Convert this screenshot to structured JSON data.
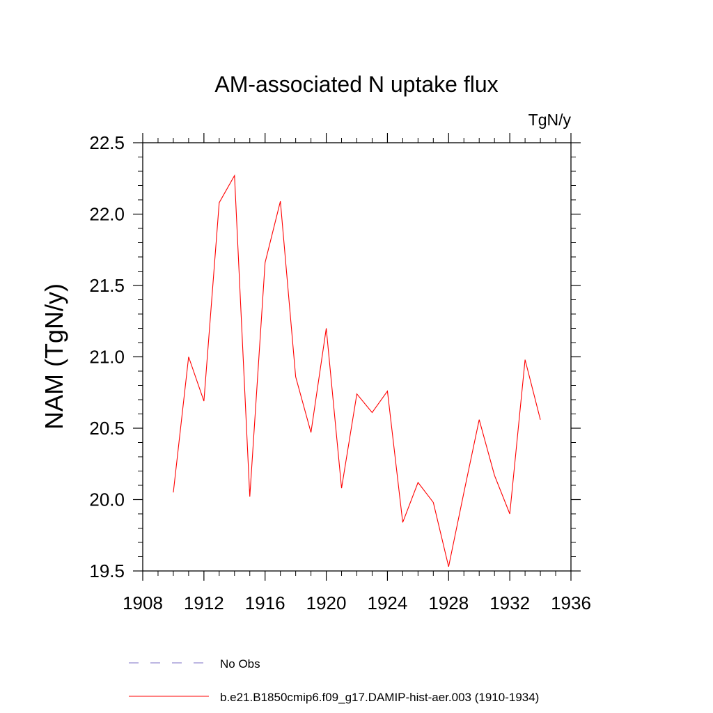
{
  "chart_data": {
    "type": "line",
    "title": "AM-associated N uptake flux",
    "units": "TgN/y",
    "ylabel": "NAM  (TgN/y)",
    "xlabel": "",
    "xlim": [
      1908,
      1936
    ],
    "ylim": [
      19.5,
      22.5
    ],
    "x_ticks": [
      1908,
      1912,
      1916,
      1920,
      1924,
      1928,
      1932,
      1936
    ],
    "x_tick_labels": [
      "1908",
      "1912",
      "1916",
      "1920",
      "1924",
      "1928",
      "1932",
      "1936"
    ],
    "y_ticks": [
      19.5,
      20.0,
      20.5,
      21.0,
      21.5,
      22.0,
      22.5
    ],
    "y_tick_labels": [
      "19.5",
      "20.0",
      "20.5",
      "21.0",
      "21.5",
      "22.0",
      "22.5"
    ],
    "grid": false,
    "legend_position": "bottom",
    "series": [
      {
        "name": "b.e21.B1850cmip6.f09_g17.DAMIP-hist-aer.003 (1910-1934)",
        "color": "#ff0000",
        "style": "solid",
        "x": [
          1910,
          1911,
          1912,
          1913,
          1914,
          1915,
          1916,
          1917,
          1918,
          1919,
          1920,
          1921,
          1922,
          1923,
          1924,
          1925,
          1926,
          1927,
          1928,
          1929,
          1930,
          1931,
          1932,
          1933,
          1934
        ],
        "y": [
          20.05,
          21.0,
          20.69,
          22.08,
          22.27,
          20.02,
          21.66,
          22.09,
          20.86,
          20.47,
          21.2,
          20.08,
          20.74,
          20.61,
          20.76,
          19.84,
          20.12,
          19.98,
          19.53,
          20.05,
          20.56,
          20.17,
          19.9,
          20.98,
          20.56
        ]
      },
      {
        "name": "No Obs",
        "color": "#7b6fc4",
        "style": "dashed",
        "x": [],
        "y": []
      }
    ]
  }
}
